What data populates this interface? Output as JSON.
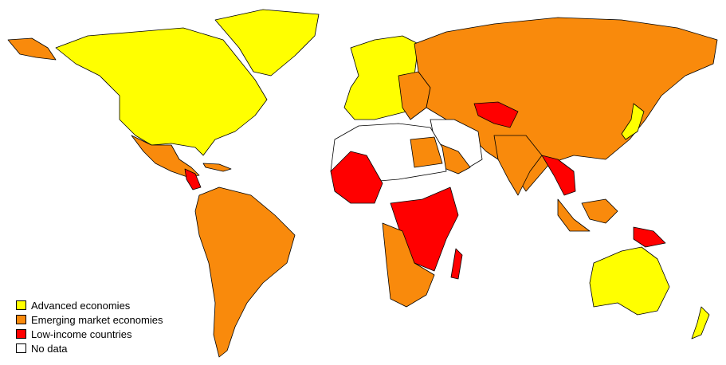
{
  "legend": {
    "items": [
      {
        "label": "Advanced economies",
        "color": "#ffff00"
      },
      {
        "label": "Emerging market economies",
        "color": "#f98a0c"
      },
      {
        "label": "Low-income countries",
        "color": "#ff0000"
      },
      {
        "label": "No data",
        "color": "#ffffff"
      }
    ]
  }
}
